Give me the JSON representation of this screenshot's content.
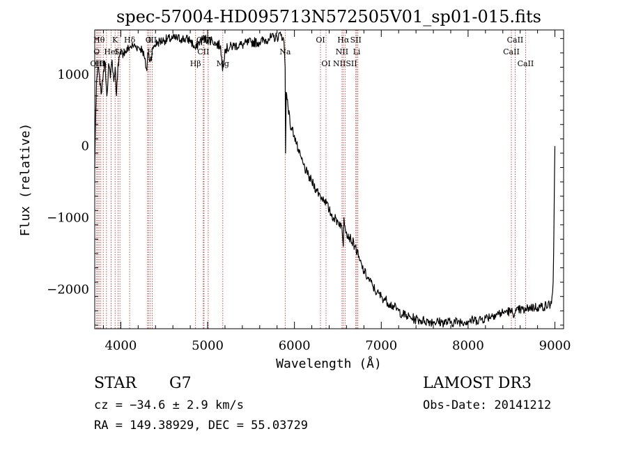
{
  "chart_data": {
    "type": "line",
    "title": "spec-57004-HD095713N572505V01_sp01-015.fits",
    "xlabel": "Wavelength (Å)",
    "ylabel": "Flux (relative)",
    "xlim": [
      3700,
      9100
    ],
    "ylim": [
      -2550,
      1620
    ],
    "xticks": [
      4000,
      5000,
      6000,
      7000,
      8000,
      9000
    ],
    "yticks": [
      -2000,
      -1000,
      0,
      1000
    ],
    "grid": false,
    "line_color": "#000000",
    "marker_color": "#b22222",
    "series": [
      {
        "x": [
          3700,
          3710,
          3720,
          3730,
          3745,
          3760,
          3780,
          3800,
          3820,
          3840,
          3860,
          3880,
          3900,
          3920,
          3935,
          3950,
          3968,
          3985,
          4000,
          4030,
          4060,
          4100,
          4150,
          4200,
          4250,
          4300,
          4310,
          4340,
          4380,
          4430,
          4500,
          4600,
          4700,
          4800,
          4861,
          4900,
          4960,
          5000,
          5050,
          5100,
          5150,
          5172,
          5200,
          5300,
          5400,
          5500,
          5600,
          5700,
          5800,
          5850,
          5880,
          5893,
          5898,
          5905,
          5920,
          5950,
          6000,
          6050,
          6100,
          6150,
          6200,
          6250,
          6300,
          6350,
          6400,
          6450,
          6500,
          6540,
          6563,
          6570,
          6600,
          6650,
          6700,
          6750,
          6800,
          6850,
          6900,
          6950,
          7000,
          7050,
          7100,
          7150,
          7200,
          7250,
          7300,
          7350,
          7400,
          7450,
          7500,
          7600,
          7700,
          7800,
          7900,
          8000,
          8100,
          8200,
          8300,
          8400,
          8450,
          8498,
          8542,
          8600,
          8662,
          8700,
          8800,
          8900,
          8960,
          8980,
          8990,
          9000
        ],
        "y": [
          -300,
          400,
          900,
          1000,
          1100,
          850,
          750,
          1050,
          1150,
          700,
          1150,
          950,
          1200,
          900,
          1100,
          700,
          1150,
          1250,
          1280,
          1300,
          1320,
          1380,
          1400,
          1380,
          1350,
          1050,
          1300,
          1200,
          1400,
          1450,
          1480,
          1500,
          1500,
          1480,
          1350,
          1450,
          1500,
          1480,
          1480,
          1420,
          1400,
          1050,
          1350,
          1400,
          1410,
          1450,
          1450,
          1500,
          1520,
          1560,
          1450,
          1100,
          -100,
          750,
          650,
          300,
          150,
          -100,
          -250,
          -400,
          -500,
          -600,
          -700,
          -750,
          -900,
          -1000,
          -1050,
          -1100,
          -1400,
          -1000,
          -1200,
          -1300,
          -1400,
          -1600,
          -1750,
          -1850,
          -1950,
          -2050,
          -2100,
          -2150,
          -2200,
          -2250,
          -2300,
          -2350,
          -2380,
          -2400,
          -2420,
          -2430,
          -2440,
          -2450,
          -2460,
          -2460,
          -2450,
          -2440,
          -2430,
          -2400,
          -2350,
          -2330,
          -2300,
          -2320,
          -2330,
          -2280,
          -2300,
          -2250,
          -2250,
          -2230,
          -2200,
          -1900,
          -1000,
          0
        ]
      }
    ],
    "lines": [
      {
        "x": 3722,
        "label": "O",
        "row": 1
      },
      {
        "x": 3735,
        "label": "OIII",
        "row": 2
      },
      {
        "x": 3750,
        "label": "Hθ",
        "row": 0
      },
      {
        "x": 3770,
        "label": "Hη",
        "row": 2
      },
      {
        "x": 3798,
        "label": "I",
        "row": 2
      },
      {
        "x": 3835,
        "label": "",
        "row": -1
      },
      {
        "x": 3889,
        "label": "HeI",
        "row": 1
      },
      {
        "x": 3934,
        "label": "K",
        "row": 0
      },
      {
        "x": 3968,
        "label": "",
        "row": -1
      },
      {
        "x": 3990,
        "label": "SII",
        "row": 1
      },
      {
        "x": 4102,
        "label": "Hδ",
        "row": 0
      },
      {
        "x": 4308,
        "label": "",
        "row": -1
      },
      {
        "x": 4320,
        "label": "O",
        "row": 0
      },
      {
        "x": 4340,
        "label": "H",
        "row": 1
      },
      {
        "x": 4363,
        "label": "III",
        "row": 0
      },
      {
        "x": 4861,
        "label": "Hβ",
        "row": 2
      },
      {
        "x": 4959,
        "label": "OIII",
        "row": 0
      },
      {
        "x": 5007,
        "label": "",
        "row": -1
      },
      {
        "x": 4950,
        "label": "CII",
        "row": 1
      },
      {
        "x": 5175,
        "label": "Mg",
        "row": 2
      },
      {
        "x": 5893,
        "label": "Na",
        "row": 1
      },
      {
        "x": 6300,
        "label": "OI",
        "row": 0
      },
      {
        "x": 6364,
        "label": "OI",
        "row": 2
      },
      {
        "x": 6548,
        "label": "NII",
        "row": 1
      },
      {
        "x": 6563,
        "label": "Hα",
        "row": 0
      },
      {
        "x": 6583,
        "label": "NIISII",
        "row": 2
      },
      {
        "x": 6707,
        "label": "SII",
        "row": 0
      },
      {
        "x": 6717,
        "label": "Li",
        "row": 1
      },
      {
        "x": 6731,
        "label": "",
        "row": -1
      },
      {
        "x": 8498,
        "label": "CaII",
        "row": 1
      },
      {
        "x": 8542,
        "label": "CaII",
        "row": 0
      },
      {
        "x": 8662,
        "label": "CaII",
        "row": 2
      }
    ]
  },
  "info": {
    "obj_class": "STAR",
    "subclass": "G7",
    "survey": "LAMOST DR3",
    "cz": "cz = −34.6 ± 2.9 km/s",
    "obs_date": "Obs-Date: 20141212",
    "coords": "RA = 149.38929, DEC =  55.03729"
  }
}
